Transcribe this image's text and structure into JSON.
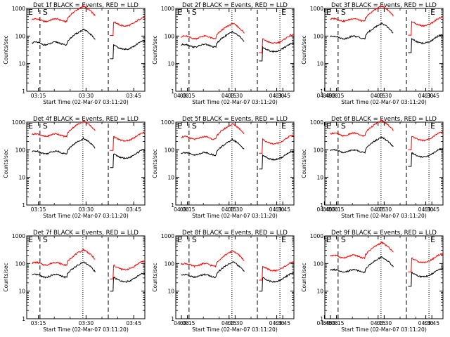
{
  "chart_data": {
    "type": "line",
    "layout": "3x3 grid",
    "x_label": "Start Time (02-Mar-07 03:11:20)",
    "y_label": "Counts/sec",
    "y_scale": "log",
    "ylim": [
      1,
      1000
    ],
    "y_tick_labels": [
      "1",
      "10",
      "100",
      "1000"
    ],
    "x_tick_labels": [
      "03:15",
      "03:30",
      "03:45",
      "04:00",
      "04:15",
      "04:30",
      "04:45"
    ],
    "xlim_minutes_after_03_00": [
      11.33,
      48.5
    ],
    "markers": {
      "exit": "E",
      "start": "S"
    },
    "series_colors": {
      "events": "#000000",
      "lld": "#ff0000"
    },
    "panels": [
      {
        "title": "Det 1f BLACK = Events, RED = LLD",
        "events_level": 60,
        "lld_level": 420,
        "dips": [
          58,
          65
        ]
      },
      {
        "title": "Det 2f BLACK = Events, RED = LLD",
        "events_level": 50,
        "lld_level": 100,
        "dips": [
          58,
          65
        ]
      },
      {
        "title": "Det 3f BLACK = Events, RED = LLD",
        "events_level": 100,
        "lld_level": 430,
        "dips": [
          58,
          65
        ]
      },
      {
        "title": "Det 4f BLACK = Events, RED = LLD",
        "events_level": 90,
        "lld_level": 380,
        "dips": [
          58,
          65
        ]
      },
      {
        "title": "Det 5f BLACK = Events, RED = LLD",
        "events_level": 80,
        "lld_level": 300,
        "dips": [
          58,
          65
        ]
      },
      {
        "title": "Det 6f BLACK = Events, RED = LLD",
        "events_level": 100,
        "lld_level": 400,
        "dips": [
          58,
          65
        ]
      },
      {
        "title": "Det 7f BLACK = Events, RED = LLD",
        "events_level": 40,
        "lld_level": 110,
        "dips": [
          58,
          65
        ]
      },
      {
        "title": "Det 8f BLACK = Events, RED = LLD",
        "events_level": 40,
        "lld_level": 100,
        "dips": [
          58,
          65
        ]
      },
      {
        "title": "Det 9f BLACK = Events, RED = LLD",
        "events_level": 60,
        "lld_level": 200,
        "dips": [
          58,
          65
        ]
      }
    ]
  }
}
